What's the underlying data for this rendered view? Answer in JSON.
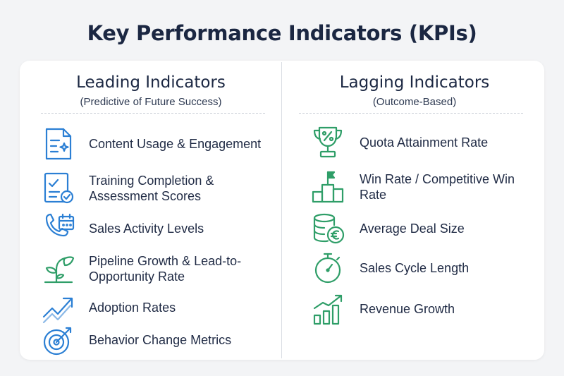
{
  "title": "Key Performance Indicators (KPIs)",
  "leading": {
    "heading": "Leading Indicators",
    "subheading": "(Predictive of Future Success)",
    "items": [
      {
        "label": "Content Usage & Engagement",
        "icon": "document-sparkle-icon"
      },
      {
        "label": "Training Completion & Assessment Scores",
        "icon": "checklist-badge-icon"
      },
      {
        "label": "Sales Activity Levels",
        "icon": "phone-calendar-icon"
      },
      {
        "label": "Pipeline Growth & Lead-to-Opportunity Rate",
        "icon": "sprout-icon"
      },
      {
        "label": "Adoption Rates",
        "icon": "trend-up-arrow-icon"
      },
      {
        "label": "Behavior Change Metrics",
        "icon": "target-arrow-icon"
      }
    ]
  },
  "lagging": {
    "heading": "Lagging Indicators",
    "subheading": "(Outcome-Based)",
    "items": [
      {
        "label": "Quota Attainment Rate",
        "icon": "trophy-percent-icon"
      },
      {
        "label": "Win Rate / Competitive Win Rate",
        "icon": "podium-flag-icon"
      },
      {
        "label": "Average Deal Size",
        "icon": "coin-stack-euro-icon"
      },
      {
        "label": "Sales Cycle Length",
        "icon": "stopwatch-icon"
      },
      {
        "label": "Revenue Growth",
        "icon": "bar-growth-icon"
      }
    ]
  },
  "colors": {
    "leading_accent": "#2b7fd4",
    "lagging_accent": "#2f9e68",
    "text": "#1f2a44"
  }
}
